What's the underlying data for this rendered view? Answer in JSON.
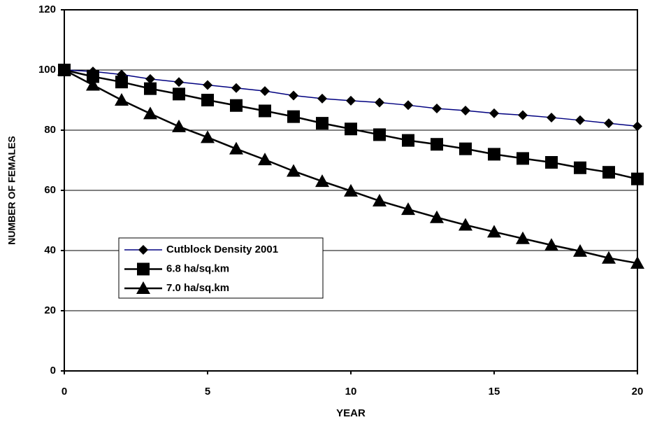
{
  "chart_data": {
    "type": "line",
    "x_label": "YEAR",
    "y_label": "NUMBER OF FEMALES",
    "x": [
      0,
      1,
      2,
      3,
      4,
      5,
      6,
      7,
      8,
      9,
      10,
      11,
      12,
      13,
      14,
      15,
      16,
      17,
      18,
      19,
      20
    ],
    "series": [
      {
        "name": "Cutblock Density 2001",
        "color": "#000080",
        "marker": "diamond",
        "values": [
          100,
          99.5,
          98.5,
          97,
          96,
          95,
          94,
          93,
          91.5,
          90.5,
          89.8,
          89.2,
          88.3,
          87.2,
          86.5,
          85.6,
          85,
          84.2,
          83.3,
          82.3,
          81.3
        ]
      },
      {
        "name": "6.8 ha/sq.km",
        "color": "#000000",
        "marker": "square",
        "values": [
          100,
          97.8,
          96,
          93.8,
          92,
          90,
          88.2,
          86.4,
          84.5,
          82.3,
          80.4,
          78.5,
          76.6,
          75.3,
          73.8,
          72,
          70.6,
          69.3,
          67.5,
          66,
          63.8
        ]
      },
      {
        "name": "7.0 ha/sq.km",
        "color": "#000000",
        "marker": "triangle",
        "values": [
          100,
          95,
          90,
          85.5,
          81.2,
          77.6,
          73.8,
          70.2,
          66.4,
          63,
          59.8,
          56.5,
          53.7,
          51,
          48.5,
          46.2,
          44,
          41.8,
          39.8,
          37.5,
          35.8
        ]
      }
    ],
    "xlim": [
      0,
      20
    ],
    "xticks": [
      0,
      5,
      10,
      15,
      20
    ],
    "ylim": [
      0,
      120
    ],
    "yticks": [
      0,
      20,
      40,
      60,
      80,
      100,
      120
    ],
    "grid": true
  }
}
